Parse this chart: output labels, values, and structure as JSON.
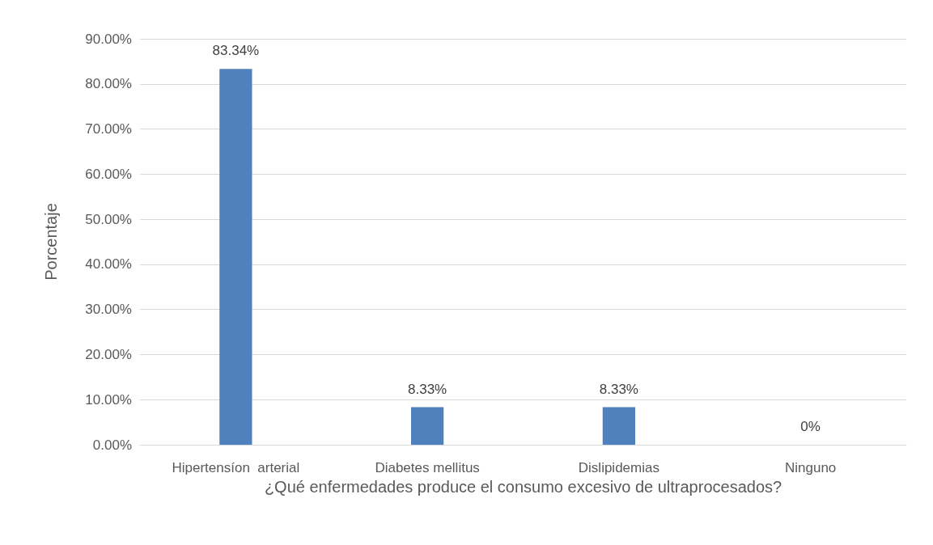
{
  "chart_data": {
    "type": "bar",
    "xlabel": "¿Qué enfermedades produce el consumo excesivo de ultraprocesados?",
    "ylabel": "Porcentaje",
    "categories": [
      "Hipertensíon  arterial",
      "Diabetes mellitus",
      "Dislipidemias",
      "Ninguno"
    ],
    "values": [
      83.34,
      8.33,
      8.33,
      0
    ],
    "value_labels": [
      "83.34%",
      "8.33%",
      "8.33%",
      "0%"
    ],
    "color": "#4f81bd",
    "ylim": [
      0,
      90
    ],
    "yticks": [
      {
        "value": 0,
        "label": "0.00%"
      },
      {
        "value": 10,
        "label": "10.00%"
      },
      {
        "value": 20,
        "label": "20.00%"
      },
      {
        "value": 30,
        "label": "30.00%"
      },
      {
        "value": 40,
        "label": "40.00%"
      },
      {
        "value": 50,
        "label": "50.00%"
      },
      {
        "value": 60,
        "label": "60.00%"
      },
      {
        "value": 70,
        "label": "70.00%"
      },
      {
        "value": 80,
        "label": "80.00%"
      },
      {
        "value": 90,
        "label": "90.00%"
      }
    ],
    "grid": "y"
  }
}
